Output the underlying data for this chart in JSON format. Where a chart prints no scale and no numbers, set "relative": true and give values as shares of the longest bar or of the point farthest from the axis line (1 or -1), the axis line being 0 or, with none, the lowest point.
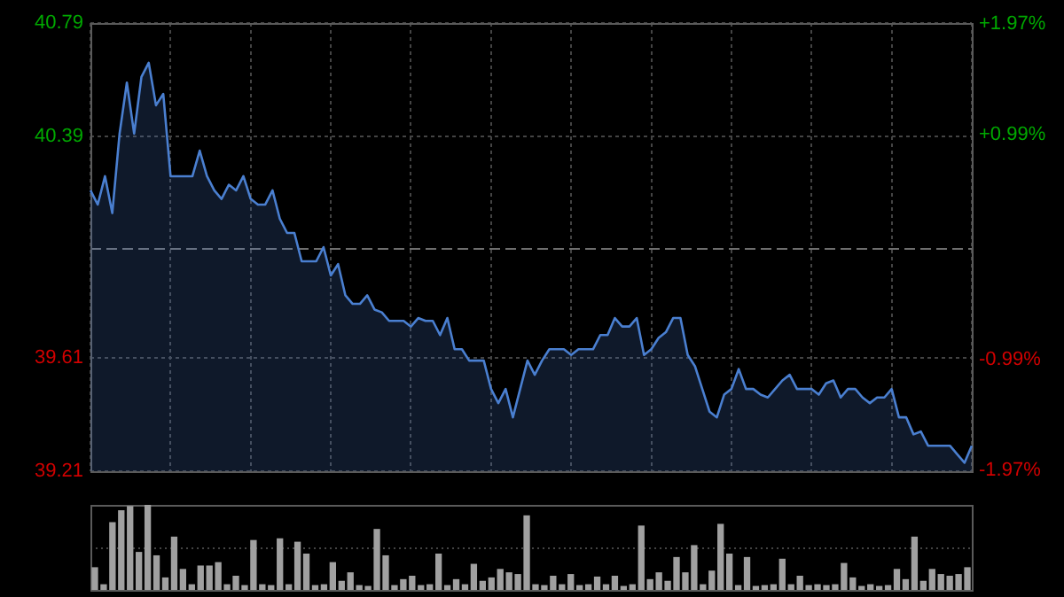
{
  "chart_data": [
    {
      "type": "area",
      "categories": [
        null,
        null,
        null,
        null,
        null,
        null,
        null,
        null,
        null,
        null,
        null,
        null,
        null,
        null,
        null,
        null,
        null,
        null,
        null,
        null,
        null,
        null,
        null,
        null,
        null,
        null,
        null,
        null,
        null,
        null,
        null,
        null,
        null,
        null,
        null,
        null,
        null,
        null,
        null,
        null,
        null,
        null,
        null,
        null,
        null,
        null,
        null,
        null,
        null,
        null,
        null,
        null,
        null,
        null,
        null,
        null,
        null,
        null,
        null,
        null,
        null,
        null,
        null,
        null,
        null,
        null,
        null,
        null,
        null,
        null,
        null,
        null,
        null,
        null,
        null,
        null,
        null,
        null,
        null,
        null,
        null,
        null,
        null,
        null,
        null,
        null,
        null,
        null,
        null,
        null,
        null,
        null,
        null,
        null,
        null,
        null,
        null,
        null,
        null,
        null,
        null,
        null,
        null,
        null,
        null,
        null,
        null,
        null,
        null,
        null,
        null,
        null,
        null,
        null,
        null,
        null,
        null,
        null,
        null,
        null,
        null,
        null
      ],
      "ylim": [
        39.21,
        40.79
      ],
      "yticks": [
        39.21,
        39.61,
        40.39,
        40.79
      ],
      "y2lim": [
        -1.975,
        1.975
      ],
      "y2ticks": [
        {
          "value": -1.97,
          "label": "-1.97%"
        },
        {
          "value": -0.99,
          "label": "-0.99%"
        },
        {
          "value": 0.99,
          "label": "+0.99%"
        },
        {
          "value": 1.97,
          "label": "+1.97%"
        }
      ],
      "ref_lines": [
        {
          "axis": "y",
          "value": 40.0,
          "color": "#6e6e6e",
          "line_style": "dashed"
        }
      ],
      "grid": true,
      "tick_labels": "y",
      "marker": "none",
      "line_style": "solid",
      "series": [
        {
          "color": "#4a7fd0",
          "values": [
            40.2,
            40.15,
            40.25,
            40.12,
            40.4,
            40.58,
            40.4,
            40.6,
            40.65,
            40.5,
            40.54,
            40.25,
            40.25,
            40.25,
            40.25,
            40.34,
            40.25,
            40.2,
            40.17,
            40.22,
            40.2,
            40.25,
            40.17,
            40.15,
            40.15,
            40.2,
            40.1,
            40.05,
            40.05,
            39.95,
            39.95,
            39.95,
            40.0,
            39.9,
            39.94,
            39.83,
            39.8,
            39.8,
            39.83,
            39.78,
            39.77,
            39.74,
            39.74,
            39.74,
            39.72,
            39.75,
            39.74,
            39.74,
            39.69,
            39.75,
            39.64,
            39.64,
            39.6,
            39.6,
            39.6,
            39.5,
            39.45,
            39.5,
            39.4,
            39.5,
            39.6,
            39.55,
            39.6,
            39.64,
            39.64,
            39.64,
            39.62,
            39.64,
            39.64,
            39.64,
            39.69,
            39.69,
            39.75,
            39.72,
            39.72,
            39.75,
            39.62,
            39.64,
            39.68,
            39.7,
            39.75,
            39.75,
            39.62,
            39.58,
            39.5,
            39.42,
            39.4,
            39.48,
            39.5,
            39.57,
            39.5,
            39.5,
            39.48,
            39.47,
            39.5,
            39.53,
            39.55,
            39.5,
            39.5,
            39.5,
            39.48,
            39.52,
            39.53,
            39.47,
            39.5,
            39.5,
            39.47,
            39.45,
            39.47,
            39.47,
            39.5,
            39.4,
            39.4,
            39.34,
            39.35,
            39.3,
            39.3,
            39.3,
            39.3,
            39.27,
            39.24,
            39.3
          ]
        }
      ]
    },
    {
      "type": "bar",
      "relative": true,
      "tick_labels": false,
      "ref_lines": [
        {
          "axis": "y",
          "value": 0.5,
          "color": "#444444",
          "line_style": "dotted"
        }
      ],
      "categories": [
        null,
        null,
        null,
        null,
        null,
        null,
        null,
        null,
        null,
        null,
        null,
        null,
        null,
        null,
        null,
        null,
        null,
        null,
        null,
        null,
        null,
        null,
        null,
        null,
        null,
        null,
        null,
        null,
        null,
        null,
        null,
        null,
        null,
        null,
        null,
        null,
        null,
        null,
        null,
        null,
        null,
        null,
        null,
        null,
        null,
        null,
        null,
        null,
        null,
        null,
        null,
        null,
        null,
        null,
        null,
        null,
        null,
        null,
        null,
        null,
        null,
        null,
        null,
        null,
        null,
        null,
        null,
        null,
        null,
        null,
        null,
        null,
        null,
        null,
        null,
        null,
        null,
        null,
        null,
        null,
        null,
        null,
        null,
        null,
        null,
        null,
        null,
        null,
        null,
        null,
        null,
        null,
        null,
        null,
        null,
        null,
        null,
        null,
        null,
        null
      ],
      "color": "#a0a0a0",
      "values": [
        0.26,
        0.06,
        0.79,
        0.93,
        0.98,
        0.44,
        1,
        0.4,
        0.14,
        0.62,
        0.24,
        0.06,
        0.28,
        0.28,
        0.32,
        0.06,
        0.16,
        0.05,
        0.58,
        0.06,
        0.05,
        0.6,
        0.06,
        0.56,
        0.42,
        0.05,
        0.06,
        0.32,
        0.1,
        0.2,
        0.05,
        0.04,
        0.71,
        0.4,
        0.05,
        0.12,
        0.16,
        0.05,
        0.06,
        0.42,
        0.05,
        0.12,
        0.06,
        0.3,
        0.1,
        0.14,
        0.24,
        0.2,
        0.18,
        0.87,
        0.06,
        0.05,
        0.16,
        0.06,
        0.18,
        0.05,
        0.06,
        0.15,
        0.06,
        0.16,
        0.04,
        0.06,
        0.75,
        0.12,
        0.2,
        0.1,
        0.38,
        0.2,
        0.52,
        0.06,
        0.22,
        0.77,
        0.42,
        0.05,
        0.38,
        0.04,
        0.05,
        0.06,
        0.36,
        0.06,
        0.16,
        0.05,
        0.06,
        0.05,
        0.06,
        0.31,
        0.14,
        0.04,
        0.06,
        0.04,
        0.05,
        0.24,
        0.12,
        0.62,
        0.1,
        0.24,
        0.18,
        0.16,
        0.18,
        0.26
      ]
    }
  ]
}
